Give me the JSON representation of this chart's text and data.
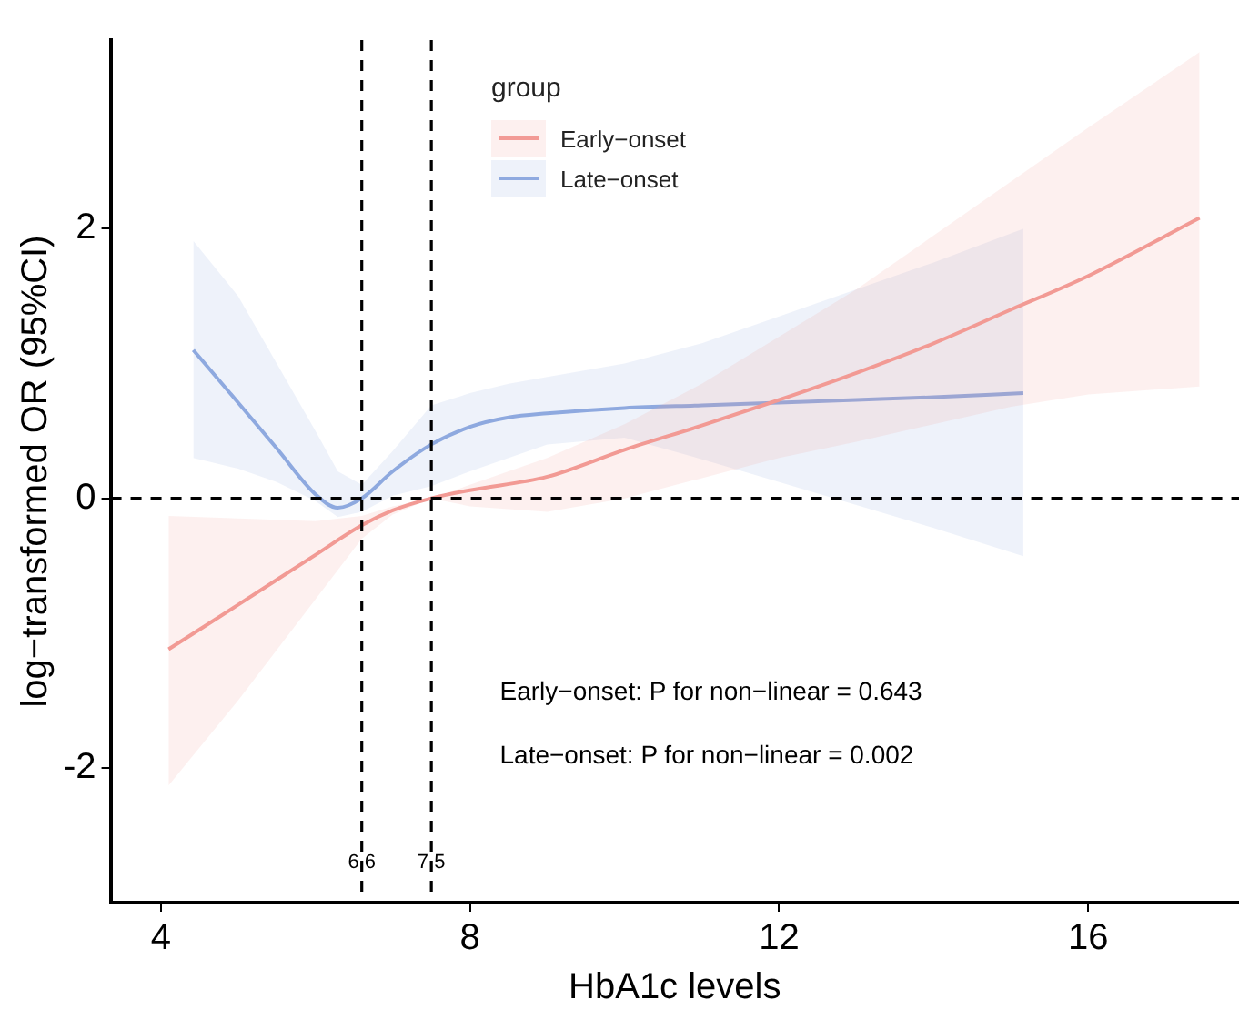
{
  "chart_data": {
    "type": "line",
    "xlabel": "HbA1c levels",
    "ylabel": "log−transformed OR (95%CI)",
    "legend_title": "group",
    "legend": "top",
    "grid": false,
    "marker": "none",
    "line_style": "solid",
    "xlim": [
      3.35,
      17.95
    ],
    "xticks": [
      4,
      8,
      12,
      16
    ],
    "ylim": [
      -3,
      3.4
    ],
    "yticks": [
      -2,
      0,
      2
    ],
    "series": [
      {
        "name": "Early−onset",
        "color": "#f29a95",
        "x": [
          4.1,
          5,
          6,
          6.6,
          7,
          7.5,
          8,
          9,
          10,
          11,
          12,
          13,
          14,
          15,
          16,
          17.44
        ],
        "values": [
          -1.12,
          -0.79,
          -0.42,
          -0.2,
          -0.09,
          0,
          0.06,
          0.16,
          0.36,
          0.54,
          0.73,
          0.93,
          1.15,
          1.4,
          1.65,
          2.08
        ],
        "lower": [
          -2.13,
          -1.5,
          -0.75,
          -0.3,
          -0.12,
          0,
          -0.06,
          -0.1,
          0,
          0.15,
          0.3,
          0.42,
          0.55,
          0.68,
          0.77,
          0.83
        ],
        "upper": [
          -0.13,
          -0.15,
          -0.17,
          -0.13,
          -0.06,
          0,
          0.1,
          0.3,
          0.55,
          0.85,
          1.2,
          1.55,
          1.95,
          2.35,
          2.75,
          3.31
        ]
      },
      {
        "name": "Late−onset",
        "color": "#8faae0",
        "x": [
          4.42,
          5,
          5.5,
          6,
          6.29,
          6.6,
          7,
          7.5,
          8,
          8.5,
          9,
          10,
          11,
          12,
          13,
          14,
          15.16
        ],
        "values": [
          1.1,
          0.71,
          0.37,
          0.03,
          -0.07,
          0,
          0.2,
          0.4,
          0.53,
          0.6,
          0.63,
          0.67,
          0.69,
          0.71,
          0.73,
          0.75,
          0.78
        ],
        "lower": [
          0.3,
          0.22,
          0.12,
          -0.02,
          -0.14,
          -0.1,
          0.02,
          0.09,
          0.2,
          0.3,
          0.4,
          0.45,
          0.29,
          0.12,
          -0.05,
          -0.22,
          -0.43
        ],
        "upper": [
          1.91,
          1.5,
          1,
          0.5,
          0.2,
          0.1,
          0.35,
          0.69,
          0.78,
          0.85,
          0.9,
          1,
          1.15,
          1.35,
          1.55,
          1.75,
          2
        ]
      }
    ],
    "ref_lines": [
      {
        "axis": "x",
        "value": 6.6,
        "label": "6.6",
        "line_style": "dashed",
        "color": "#000000"
      },
      {
        "axis": "x",
        "value": 7.5,
        "label": "7.5",
        "line_style": "dashed",
        "color": "#000000"
      },
      {
        "axis": "y",
        "value": 0,
        "line_style": "dashed",
        "color": "#000000"
      }
    ],
    "annotations": [
      "Early−onset: P for non−linear = 0.643",
      "Late−onset: P for non−linear = 0.002"
    ]
  }
}
